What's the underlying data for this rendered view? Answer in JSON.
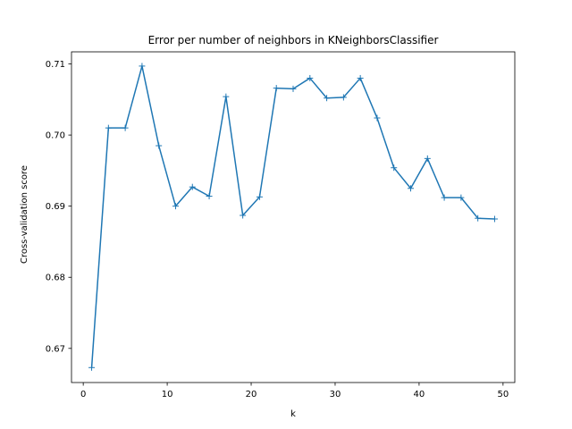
{
  "chart_data": {
    "type": "line",
    "title": "Error per number of neighbors in KNeighborsClassifier",
    "xlabel": "k",
    "ylabel": "Cross-validation score",
    "xlim": [
      -1.4,
      51.4
    ],
    "ylim": [
      0.6652,
      0.7117
    ],
    "xticks": [
      0,
      10,
      20,
      30,
      40,
      50
    ],
    "yticks": [
      0.67,
      0.68,
      0.69,
      0.7,
      0.71
    ],
    "ytick_labels": [
      "0.67",
      "0.68",
      "0.69",
      "0.70",
      "0.71"
    ],
    "grid": false,
    "marker": "+",
    "series": [
      {
        "color": "#1f77b4",
        "x": [
          1,
          3,
          5,
          7,
          9,
          11,
          13,
          15,
          17,
          19,
          21,
          23,
          25,
          27,
          29,
          31,
          33,
          35,
          37,
          39,
          41,
          43,
          45,
          47,
          49
        ],
        "values": [
          0.6673,
          0.701,
          0.701,
          0.7097,
          0.6985,
          0.69,
          0.6927,
          0.6914,
          0.7054,
          0.6887,
          0.6913,
          0.7066,
          0.7065,
          0.708,
          0.7052,
          0.7053,
          0.708,
          0.7024,
          0.6954,
          0.6925,
          0.6967,
          0.6912,
          0.6912,
          0.6883,
          0.6882
        ]
      }
    ]
  }
}
